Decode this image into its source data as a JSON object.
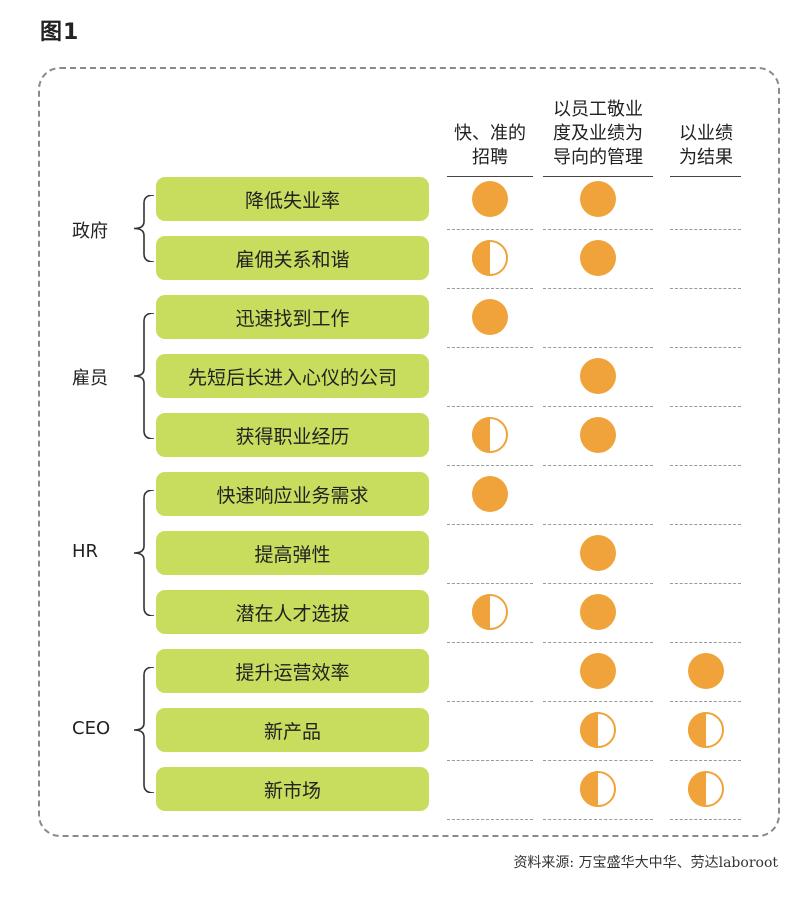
{
  "figure": {
    "title": "图1",
    "source": "资料来源: 万宝盛华大中华、劳达laboroot"
  },
  "colors": {
    "pill": "#c8dc5e",
    "circle": "#f0a33a",
    "circle_empty": "#ffffff"
  },
  "columns": [
    {
      "label": "快、准的招聘",
      "lines": [
        "快、准的",
        "招聘"
      ]
    },
    {
      "label": "以员工敬业度及业绩为导向的管理",
      "lines": [
        "以员工敬业",
        "度及业绩为",
        "导向的管理"
      ]
    },
    {
      "label": "以业绩为结果",
      "lines": [
        "以业绩",
        "为结果"
      ]
    }
  ],
  "groups": [
    {
      "label": "政府",
      "rows": [
        0,
        1
      ]
    },
    {
      "label": "雇员",
      "rows": [
        2,
        3,
        4
      ]
    },
    {
      "label": "HR",
      "rows": [
        5,
        6,
        7
      ]
    },
    {
      "label": "CEO",
      "rows": [
        8,
        9,
        10
      ]
    }
  ],
  "rows": [
    {
      "label": "降低失业率",
      "marks": [
        "full",
        "full",
        "none"
      ]
    },
    {
      "label": "雇佣关系和谐",
      "marks": [
        "half",
        "full",
        "none"
      ]
    },
    {
      "label": "迅速找到工作",
      "marks": [
        "full",
        "none",
        "none"
      ]
    },
    {
      "label": "先短后长进入心仪的公司",
      "marks": [
        "none",
        "full",
        "none"
      ]
    },
    {
      "label": "获得职业经历",
      "marks": [
        "half",
        "full",
        "none"
      ]
    },
    {
      "label": "快速响应业务需求",
      "marks": [
        "full",
        "none",
        "none"
      ]
    },
    {
      "label": "提高弹性",
      "marks": [
        "none",
        "full",
        "none"
      ]
    },
    {
      "label": "潜在人才选拔",
      "marks": [
        "half",
        "full",
        "none"
      ]
    },
    {
      "label": "提升运营效率",
      "marks": [
        "none",
        "full",
        "full"
      ]
    },
    {
      "label": "新产品",
      "marks": [
        "none",
        "half",
        "half"
      ]
    },
    {
      "label": "新市场",
      "marks": [
        "none",
        "half",
        "half"
      ]
    }
  ]
}
